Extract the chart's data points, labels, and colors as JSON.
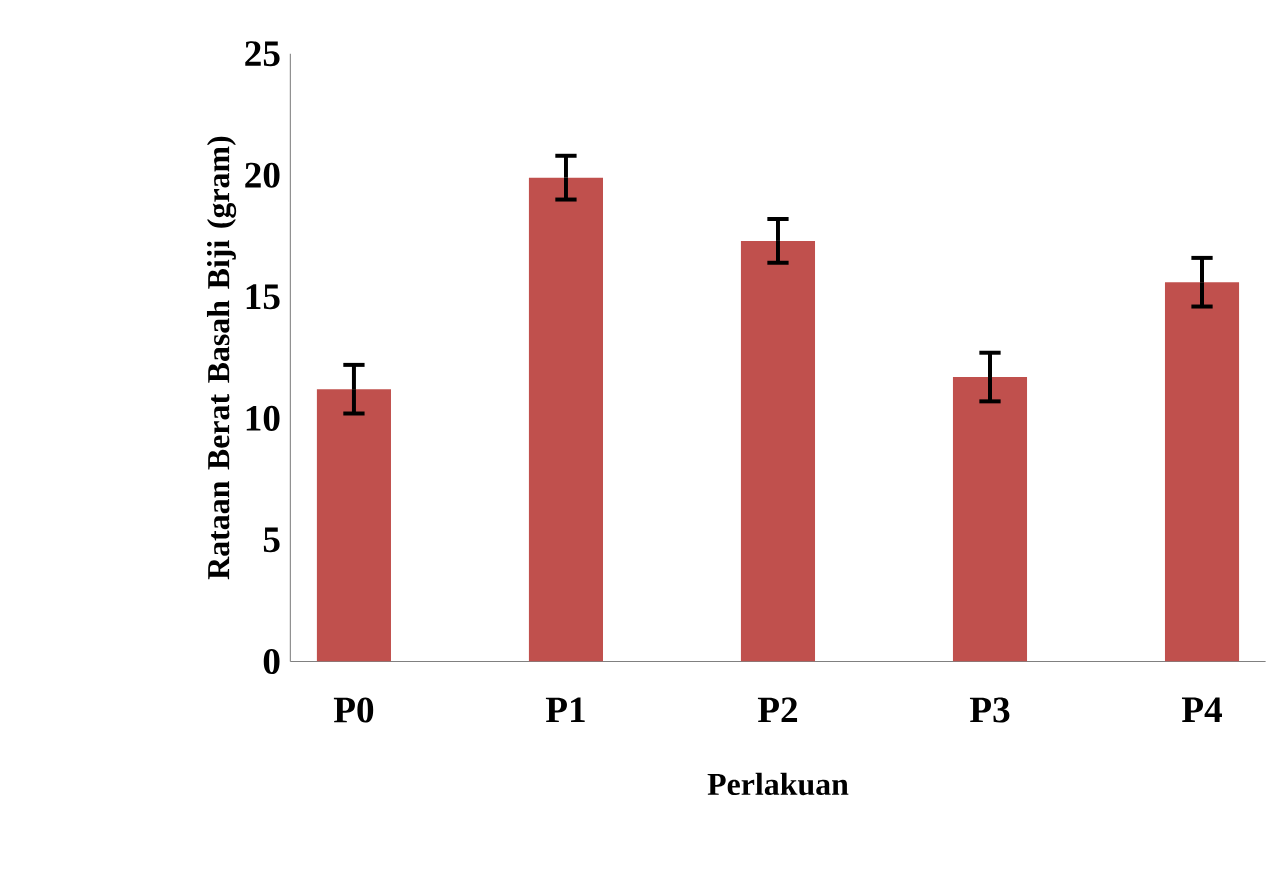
{
  "chart_data": {
    "type": "bar",
    "xlabel": "Perlakuan",
    "ylabel": "Rataan Berat Basah Biji (gram)",
    "categories": [
      "P0",
      "P1",
      "P2",
      "P3",
      "P4"
    ],
    "values": [
      11.2,
      19.9,
      17.3,
      11.7,
      15.6
    ],
    "errors": [
      1.0,
      0.9,
      0.9,
      1.0,
      1.0
    ],
    "color": "#c0504d",
    "ylim": [
      0,
      25
    ],
    "yticks": [
      0,
      5,
      10,
      15,
      20,
      25
    ]
  }
}
